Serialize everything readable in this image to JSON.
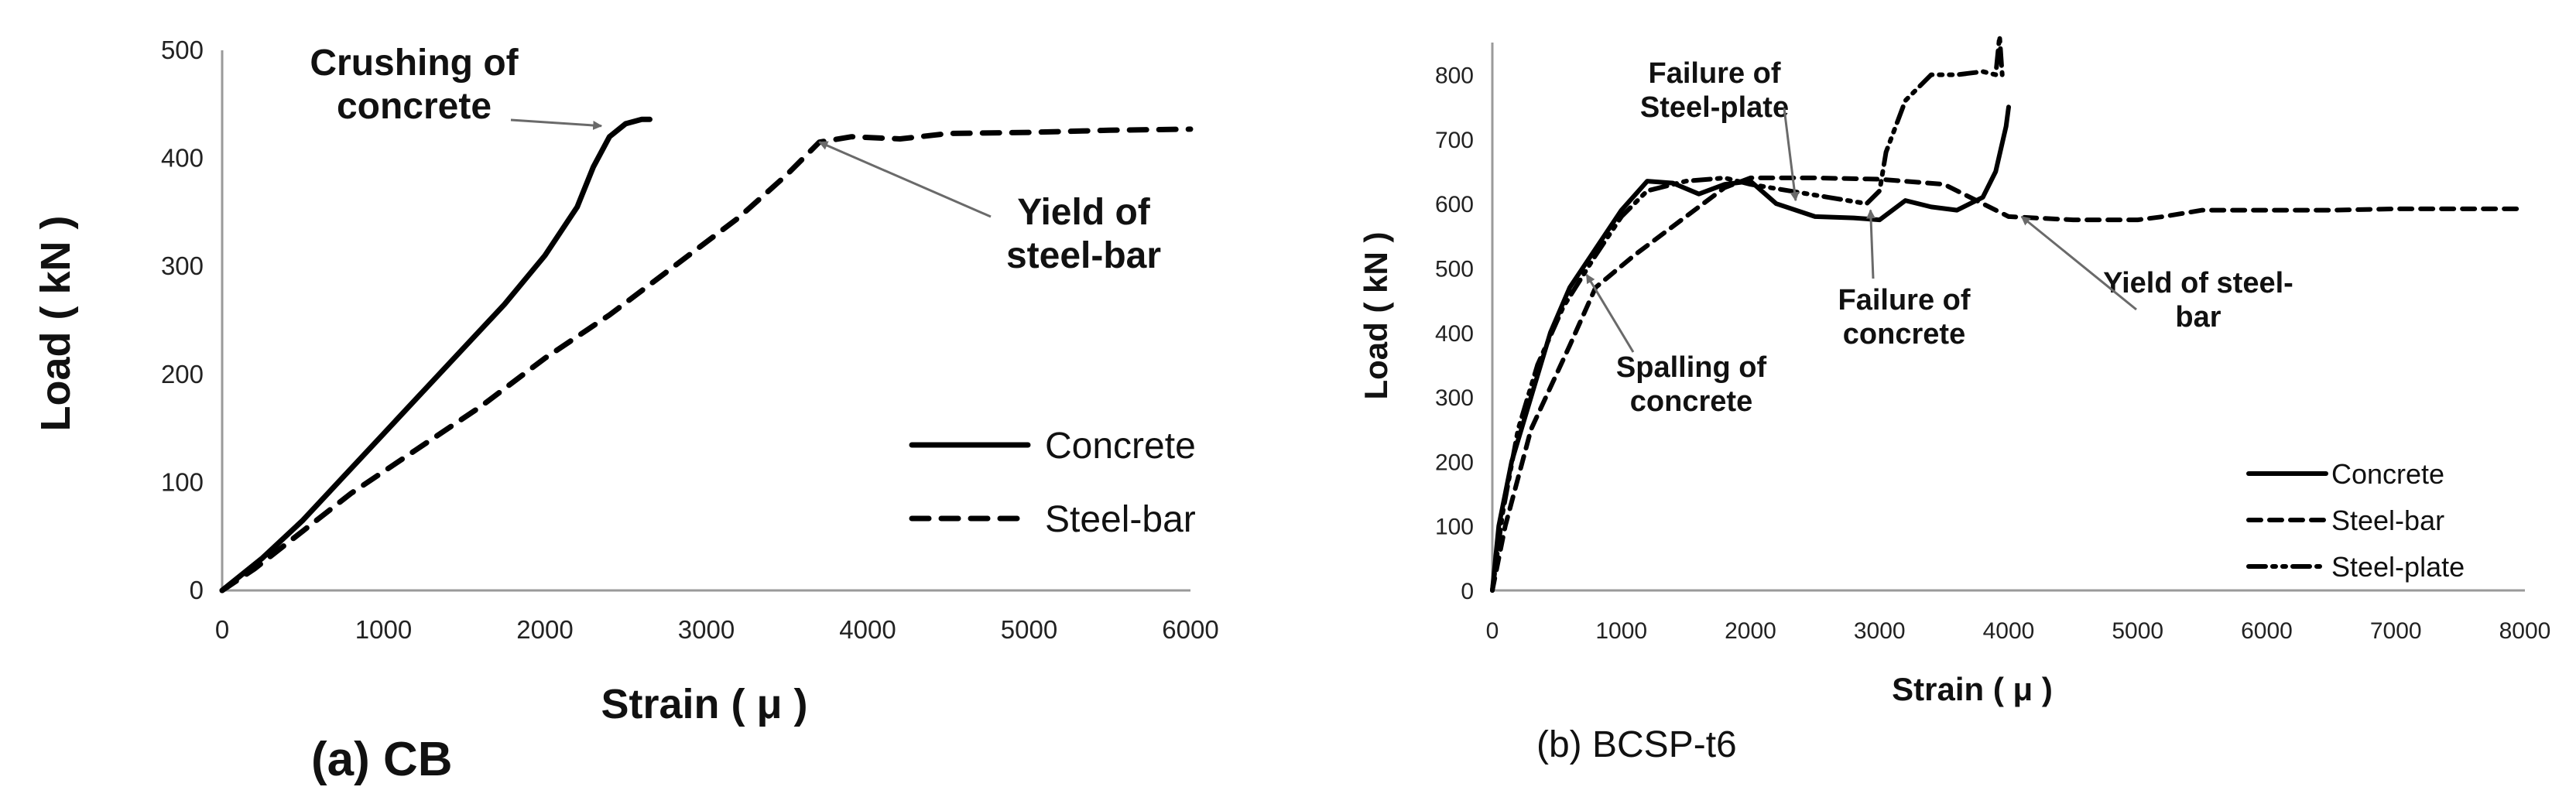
{
  "chart_data": [
    {
      "type": "line",
      "caption": "(a) CB",
      "title": "",
      "xlabel": "Strain ( μ )",
      "ylabel": "Load ( kN )",
      "xlim": [
        0,
        6000
      ],
      "ylim": [
        0,
        500
      ],
      "xticks": [
        0,
        1000,
        2000,
        3000,
        4000,
        5000,
        6000
      ],
      "yticks": [
        0,
        100,
        200,
        300,
        400,
        500
      ],
      "grid": false,
      "legend_position": "bottom-right",
      "series": [
        {
          "name": "Concrete",
          "style": "solid",
          "points": [
            [
              0,
              0
            ],
            [
              250,
              30
            ],
            [
              500,
              65
            ],
            [
              750,
              105
            ],
            [
              1000,
              145
            ],
            [
              1250,
              185
            ],
            [
              1500,
              225
            ],
            [
              1750,
              265
            ],
            [
              2000,
              310
            ],
            [
              2200,
              355
            ],
            [
              2300,
              392
            ],
            [
              2400,
              420
            ],
            [
              2500,
              432
            ],
            [
              2600,
              436
            ],
            [
              2650,
              436
            ]
          ]
        },
        {
          "name": "Steel-bar",
          "style": "dashed",
          "points": [
            [
              0,
              0
            ],
            [
              200,
              20
            ],
            [
              500,
              55
            ],
            [
              800,
              90
            ],
            [
              1200,
              130
            ],
            [
              1600,
              170
            ],
            [
              2000,
              215
            ],
            [
              2400,
              255
            ],
            [
              2800,
              300
            ],
            [
              3200,
              345
            ],
            [
              3500,
              385
            ],
            [
              3700,
              415
            ],
            [
              3900,
              420
            ],
            [
              4200,
              418
            ],
            [
              4500,
              423
            ],
            [
              5000,
              424
            ],
            [
              5500,
              426
            ],
            [
              6000,
              427
            ]
          ]
        }
      ],
      "annotations": [
        {
          "lines": [
            "Crushing of",
            "concrete"
          ],
          "target": [
            2350,
            430
          ]
        },
        {
          "lines": [
            "Yield of",
            "steel-bar"
          ],
          "target": [
            3700,
            415
          ]
        }
      ]
    },
    {
      "type": "line",
      "caption": "(b) BCSP-t6",
      "title": "",
      "xlabel": "Strain ( μ )",
      "ylabel": "Load ( kN )",
      "xlim": [
        0,
        8000
      ],
      "ylim": [
        0,
        850
      ],
      "xticks": [
        0,
        1000,
        2000,
        3000,
        4000,
        5000,
        6000,
        7000,
        8000
      ],
      "yticks": [
        0,
        100,
        200,
        300,
        400,
        500,
        600,
        700,
        800
      ],
      "grid": false,
      "legend_position": "bottom-right",
      "series": [
        {
          "name": "Concrete",
          "style": "solid",
          "points": [
            [
              0,
              0
            ],
            [
              50,
              100
            ],
            [
              150,
              200
            ],
            [
              300,
              300
            ],
            [
              450,
              400
            ],
            [
              600,
              470
            ],
            [
              800,
              530
            ],
            [
              1000,
              590
            ],
            [
              1200,
              635
            ],
            [
              1400,
              632
            ],
            [
              1600,
              615
            ],
            [
              1800,
              630
            ],
            [
              2000,
              635
            ],
            [
              2200,
              600
            ],
            [
              2500,
              580
            ],
            [
              2800,
              578
            ],
            [
              3000,
              575
            ],
            [
              3200,
              605
            ],
            [
              3400,
              595
            ],
            [
              3600,
              590
            ],
            [
              3800,
              610
            ],
            [
              3900,
              650
            ],
            [
              3980,
              720
            ],
            [
              4000,
              750
            ]
          ]
        },
        {
          "name": "Steel-bar",
          "style": "dashed",
          "points": [
            [
              0,
              0
            ],
            [
              100,
              100
            ],
            [
              300,
              250
            ],
            [
              600,
              380
            ],
            [
              800,
              470
            ],
            [
              1100,
              520
            ],
            [
              1500,
              580
            ],
            [
              1800,
              625
            ],
            [
              2000,
              640
            ],
            [
              2500,
              640
            ],
            [
              3000,
              638
            ],
            [
              3500,
              630
            ],
            [
              3800,
              600
            ],
            [
              4000,
              580
            ],
            [
              4500,
              575
            ],
            [
              5000,
              575
            ],
            [
              5200,
              580
            ],
            [
              5500,
              590
            ],
            [
              6500,
              590
            ],
            [
              7000,
              592
            ],
            [
              8000,
              592
            ]
          ]
        },
        {
          "name": "Steel-plate",
          "style": "dashdot",
          "points": [
            [
              0,
              0
            ],
            [
              80,
              120
            ],
            [
              200,
              250
            ],
            [
              350,
              350
            ],
            [
              550,
              440
            ],
            [
              800,
              520
            ],
            [
              1000,
              580
            ],
            [
              1200,
              620
            ],
            [
              1500,
              635
            ],
            [
              1800,
              640
            ],
            [
              2000,
              630
            ],
            [
              2300,
              620
            ],
            [
              2600,
              610
            ],
            [
              2900,
              600
            ],
            [
              3000,
              620
            ],
            [
              3050,
              680
            ],
            [
              3200,
              760
            ],
            [
              3400,
              800
            ],
            [
              3600,
              800
            ],
            [
              3800,
              805
            ],
            [
              3900,
              800
            ],
            [
              3930,
              860
            ],
            [
              3950,
              800
            ]
          ]
        }
      ],
      "annotations": [
        {
          "lines": [
            "Failure of",
            "Steel-plate"
          ],
          "target": [
            2350,
            605
          ]
        },
        {
          "lines": [
            "Failure of",
            "concrete"
          ],
          "target": [
            2930,
            590
          ]
        },
        {
          "lines": [
            "Spalling of",
            "concrete"
          ],
          "target": [
            730,
            490
          ]
        },
        {
          "lines": [
            "Yield of steel-",
            "bar"
          ],
          "target": [
            4100,
            580
          ]
        }
      ]
    }
  ]
}
